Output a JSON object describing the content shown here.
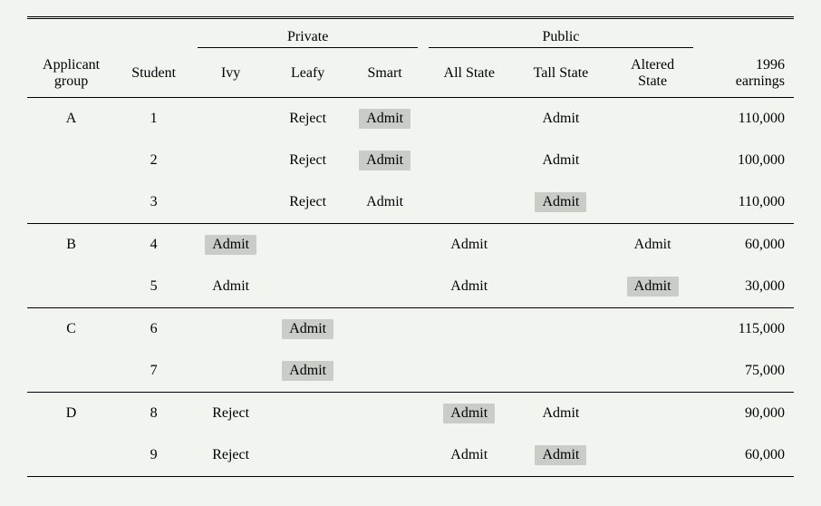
{
  "type": "table",
  "background_color": "#f2f4f0",
  "highlight_color": "#c9ccc7",
  "font_family": "Georgia, Times New Roman, serif",
  "font_size_pt": 16,
  "spanners": {
    "private": "Private",
    "public": "Public"
  },
  "headers": {
    "group": "Applicant\ngroup",
    "student": "Student",
    "ivy": "Ivy",
    "leafy": "Leafy",
    "smart": "Smart",
    "allstate": "All State",
    "tallstate": "Tall State",
    "altered": "Altered\nState",
    "earnings": "1996\nearnings"
  },
  "groups": [
    {
      "label": "A",
      "rows": [
        {
          "student": "1",
          "ivy": "",
          "leafy": "Reject",
          "smart": "Admit",
          "smart_hl": true,
          "allstate": "",
          "tallstate": "Admit",
          "altered": "",
          "earnings": "110,000"
        },
        {
          "student": "2",
          "ivy": "",
          "leafy": "Reject",
          "smart": "Admit",
          "smart_hl": true,
          "allstate": "",
          "tallstate": "Admit",
          "altered": "",
          "earnings": "100,000"
        },
        {
          "student": "3",
          "ivy": "",
          "leafy": "Reject",
          "smart": "Admit",
          "allstate": "",
          "tallstate": "Admit",
          "tallstate_hl": true,
          "altered": "",
          "earnings": "110,000"
        }
      ]
    },
    {
      "label": "B",
      "rows": [
        {
          "student": "4",
          "ivy": "Admit",
          "ivy_hl": true,
          "leafy": "",
          "smart": "",
          "allstate": "Admit",
          "tallstate": "",
          "altered": "Admit",
          "earnings": "60,000"
        },
        {
          "student": "5",
          "ivy": "Admit",
          "leafy": "",
          "smart": "",
          "allstate": "Admit",
          "tallstate": "",
          "altered": "Admit",
          "altered_hl": true,
          "earnings": "30,000"
        }
      ]
    },
    {
      "label": "C",
      "rows": [
        {
          "student": "6",
          "ivy": "",
          "leafy": "Admit",
          "leafy_hl": true,
          "smart": "",
          "allstate": "",
          "tallstate": "",
          "altered": "",
          "earnings": "115,000"
        },
        {
          "student": "7",
          "ivy": "",
          "leafy": "Admit",
          "leafy_hl": true,
          "smart": "",
          "allstate": "",
          "tallstate": "",
          "altered": "",
          "earnings": "75,000"
        }
      ]
    },
    {
      "label": "D",
      "rows": [
        {
          "student": "8",
          "ivy": "Reject",
          "leafy": "",
          "smart": "",
          "allstate": "Admit",
          "allstate_hl": true,
          "tallstate": "Admit",
          "altered": "",
          "earnings": "90,000"
        },
        {
          "student": "9",
          "ivy": "Reject",
          "leafy": "",
          "smart": "",
          "allstate": "Admit",
          "tallstate": "Admit",
          "tallstate_hl": true,
          "altered": "",
          "earnings": "60,000"
        }
      ]
    }
  ]
}
